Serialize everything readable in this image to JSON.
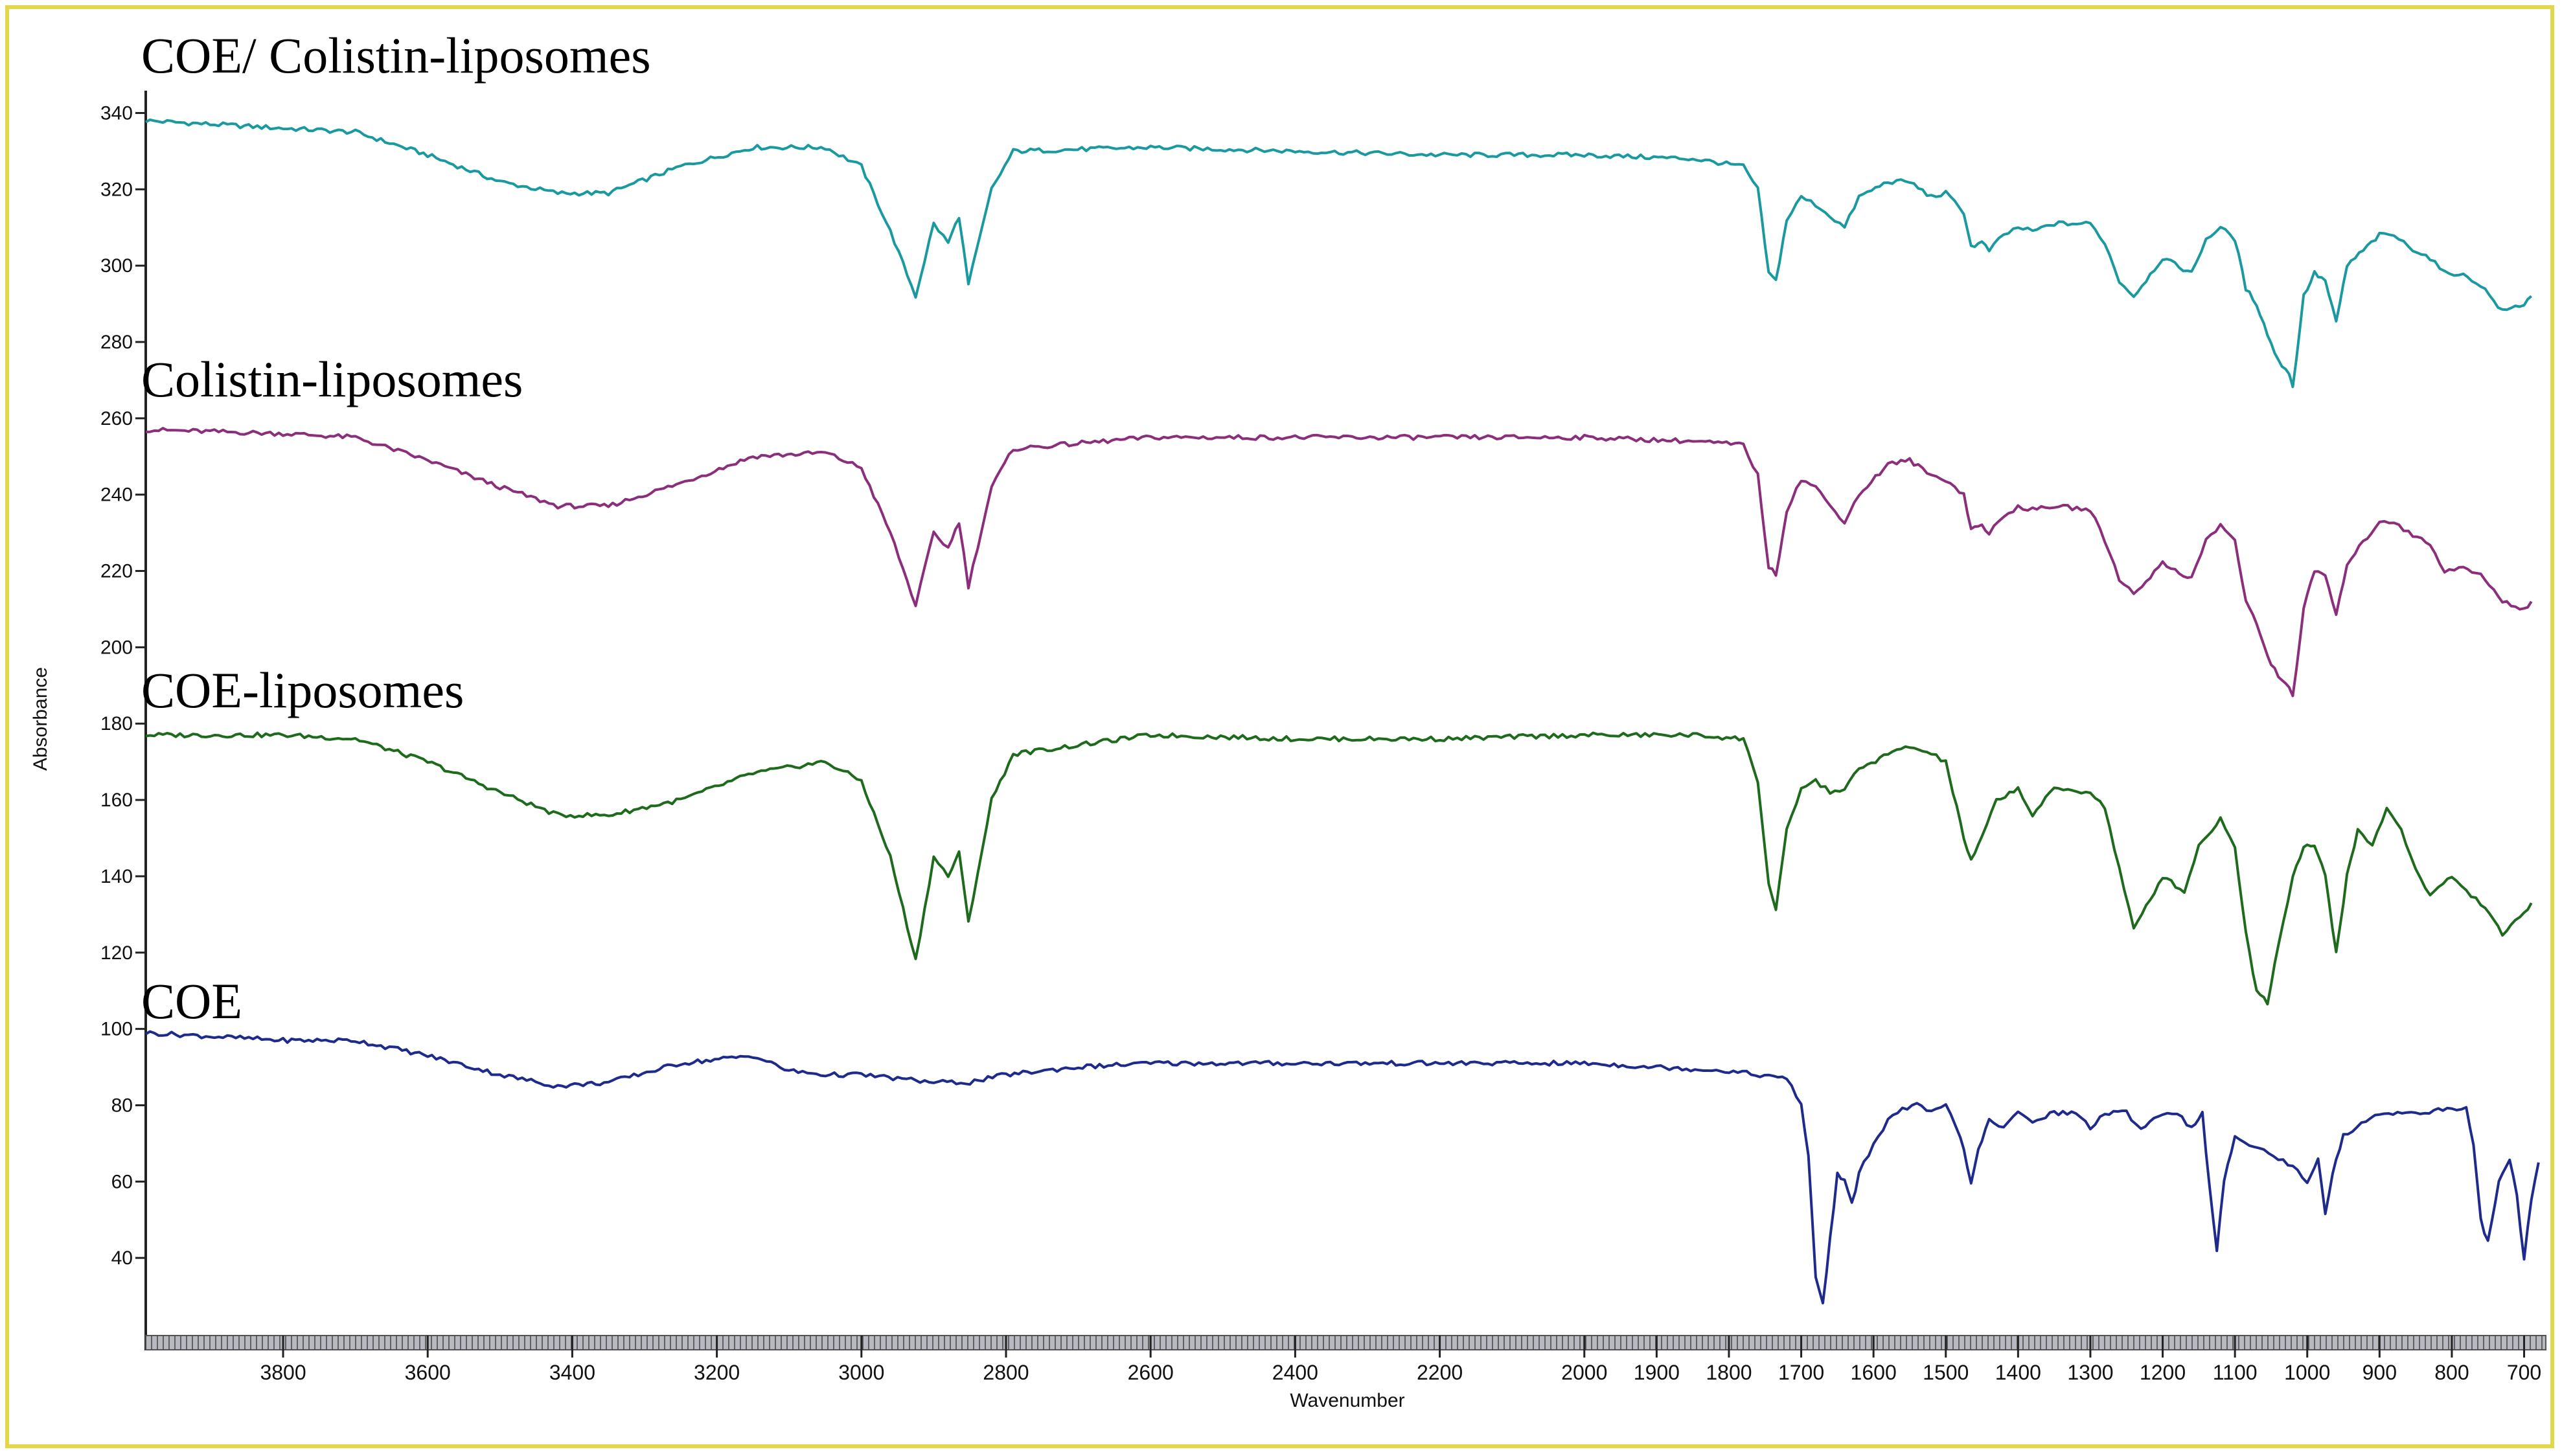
{
  "chart_data": {
    "type": "line",
    "xlabel": "Wavenumber",
    "ylabel": "Absorbance",
    "xlim": [
      3990,
      670
    ],
    "ylim": [
      20,
      345
    ],
    "x_ticks": [
      3800,
      3600,
      3400,
      3200,
      3000,
      2800,
      2600,
      2400,
      2200,
      2000,
      1900,
      1800,
      1700,
      1600,
      1500,
      1400,
      1300,
      1200,
      1100,
      1000,
      900,
      800,
      700
    ],
    "x_tick_labels": [
      "3800",
      "3600",
      "3400",
      "3200",
      "3000",
      "2800",
      "2600",
      "2400",
      "2200",
      "2000",
      "1900",
      "1800",
      "1700",
      "1600",
      "1500",
      "1400",
      "1300",
      "1200",
      "1100",
      "1000",
      "900",
      "800",
      "700"
    ],
    "y_ticks": [
      40,
      60,
      80,
      100,
      120,
      140,
      160,
      180,
      200,
      220,
      240,
      260,
      280,
      300,
      320,
      340
    ],
    "y_tick_labels": [
      "40",
      "60",
      "80",
      "100",
      "120",
      "140",
      "160",
      "180",
      "200",
      "220",
      "240",
      "260",
      "280",
      "300",
      "320",
      "340"
    ],
    "grid": false,
    "series": [
      {
        "name": "COE/ Colistin-liposomes",
        "color": "#1a9aa0",
        "points": [
          [
            3990,
            338
          ],
          [
            3800,
            336
          ],
          [
            3700,
            335
          ],
          [
            3600,
            329
          ],
          [
            3500,
            322
          ],
          [
            3420,
            319
          ],
          [
            3350,
            319
          ],
          [
            3250,
            326
          ],
          [
            3150,
            331
          ],
          [
            3050,
            331
          ],
          [
            3000,
            326
          ],
          [
            2960,
            309
          ],
          [
            2925,
            292
          ],
          [
            2900,
            311
          ],
          [
            2880,
            306
          ],
          [
            2865,
            313
          ],
          [
            2852,
            295
          ],
          [
            2820,
            320
          ],
          [
            2790,
            330
          ],
          [
            2600,
            331
          ],
          [
            2400,
            330
          ],
          [
            2200,
            329
          ],
          [
            2000,
            329
          ],
          [
            1850,
            328
          ],
          [
            1780,
            326
          ],
          [
            1760,
            320
          ],
          [
            1745,
            298
          ],
          [
            1735,
            296
          ],
          [
            1720,
            312
          ],
          [
            1700,
            318
          ],
          [
            1680,
            316
          ],
          [
            1660,
            313
          ],
          [
            1640,
            310
          ],
          [
            1620,
            318
          ],
          [
            1580,
            322
          ],
          [
            1550,
            322
          ],
          [
            1520,
            318
          ],
          [
            1500,
            319
          ],
          [
            1475,
            314
          ],
          [
            1465,
            305
          ],
          [
            1450,
            306
          ],
          [
            1440,
            304
          ],
          [
            1420,
            308
          ],
          [
            1400,
            310
          ],
          [
            1380,
            309
          ],
          [
            1350,
            311
          ],
          [
            1300,
            311
          ],
          [
            1280,
            306
          ],
          [
            1260,
            296
          ],
          [
            1240,
            292
          ],
          [
            1200,
            302
          ],
          [
            1160,
            298
          ],
          [
            1140,
            307
          ],
          [
            1120,
            310
          ],
          [
            1100,
            307
          ],
          [
            1085,
            294
          ],
          [
            1070,
            290
          ],
          [
            1055,
            282
          ],
          [
            1040,
            275
          ],
          [
            1025,
            272
          ],
          [
            1020,
            268
          ],
          [
            1005,
            292
          ],
          [
            990,
            298
          ],
          [
            975,
            296
          ],
          [
            960,
            285
          ],
          [
            945,
            300
          ],
          [
            900,
            308
          ],
          [
            880,
            308
          ],
          [
            860,
            305
          ],
          [
            830,
            302
          ],
          [
            810,
            298
          ],
          [
            790,
            298
          ],
          [
            760,
            295
          ],
          [
            730,
            288
          ],
          [
            700,
            290
          ],
          [
            690,
            292
          ]
        ]
      },
      {
        "name": "Colistin-liposomes",
        "color": "#8b2f7c",
        "points": [
          [
            3990,
            257
          ],
          [
            3800,
            256
          ],
          [
            3700,
            255
          ],
          [
            3600,
            249
          ],
          [
            3500,
            242
          ],
          [
            3420,
            237
          ],
          [
            3350,
            237
          ],
          [
            3250,
            243
          ],
          [
            3150,
            250
          ],
          [
            3050,
            251
          ],
          [
            3000,
            247
          ],
          [
            2960,
            230
          ],
          [
            2925,
            211
          ],
          [
            2900,
            230
          ],
          [
            2880,
            226
          ],
          [
            2865,
            233
          ],
          [
            2852,
            216
          ],
          [
            2820,
            242
          ],
          [
            2790,
            252
          ],
          [
            2600,
            255
          ],
          [
            2400,
            255
          ],
          [
            2200,
            255
          ],
          [
            2000,
            255
          ],
          [
            1850,
            254
          ],
          [
            1780,
            253
          ],
          [
            1760,
            245
          ],
          [
            1745,
            221
          ],
          [
            1735,
            219
          ],
          [
            1720,
            236
          ],
          [
            1700,
            244
          ],
          [
            1680,
            242
          ],
          [
            1660,
            237
          ],
          [
            1640,
            233
          ],
          [
            1620,
            240
          ],
          [
            1580,
            248
          ],
          [
            1550,
            249
          ],
          [
            1520,
            245
          ],
          [
            1500,
            244
          ],
          [
            1475,
            240
          ],
          [
            1465,
            231
          ],
          [
            1450,
            232
          ],
          [
            1440,
            230
          ],
          [
            1420,
            234
          ],
          [
            1400,
            237
          ],
          [
            1380,
            236
          ],
          [
            1350,
            237
          ],
          [
            1300,
            236
          ],
          [
            1280,
            228
          ],
          [
            1260,
            218
          ],
          [
            1240,
            214
          ],
          [
            1200,
            222
          ],
          [
            1160,
            218
          ],
          [
            1140,
            228
          ],
          [
            1120,
            232
          ],
          [
            1100,
            228
          ],
          [
            1085,
            212
          ],
          [
            1070,
            206
          ],
          [
            1055,
            198
          ],
          [
            1040,
            192
          ],
          [
            1025,
            190
          ],
          [
            1020,
            187
          ],
          [
            1005,
            210
          ],
          [
            990,
            220
          ],
          [
            975,
            219
          ],
          [
            960,
            208
          ],
          [
            945,
            222
          ],
          [
            900,
            233
          ],
          [
            880,
            233
          ],
          [
            860,
            230
          ],
          [
            830,
            227
          ],
          [
            810,
            220
          ],
          [
            790,
            221
          ],
          [
            760,
            219
          ],
          [
            730,
            212
          ],
          [
            700,
            210
          ],
          [
            690,
            212
          ]
        ]
      },
      {
        "name": "COE-liposomes",
        "color": "#1e6b1e",
        "points": [
          [
            3990,
            177
          ],
          [
            3800,
            177
          ],
          [
            3700,
            176
          ],
          [
            3600,
            170
          ],
          [
            3500,
            162
          ],
          [
            3420,
            156
          ],
          [
            3350,
            156
          ],
          [
            3250,
            160
          ],
          [
            3150,
            167
          ],
          [
            3050,
            170
          ],
          [
            3000,
            165
          ],
          [
            2960,
            145
          ],
          [
            2925,
            118
          ],
          [
            2900,
            145
          ],
          [
            2880,
            140
          ],
          [
            2865,
            146
          ],
          [
            2852,
            128
          ],
          [
            2820,
            160
          ],
          [
            2790,
            172
          ],
          [
            2600,
            177
          ],
          [
            2400,
            176
          ],
          [
            2200,
            176
          ],
          [
            2000,
            177
          ],
          [
            1850,
            177
          ],
          [
            1780,
            176
          ],
          [
            1760,
            165
          ],
          [
            1745,
            138
          ],
          [
            1735,
            131
          ],
          [
            1720,
            152
          ],
          [
            1700,
            163
          ],
          [
            1680,
            165
          ],
          [
            1660,
            162
          ],
          [
            1640,
            163
          ],
          [
            1620,
            168
          ],
          [
            1580,
            172
          ],
          [
            1550,
            174
          ],
          [
            1520,
            172
          ],
          [
            1500,
            170
          ],
          [
            1490,
            162
          ],
          [
            1475,
            150
          ],
          [
            1465,
            144
          ],
          [
            1450,
            150
          ],
          [
            1430,
            160
          ],
          [
            1400,
            163
          ],
          [
            1380,
            156
          ],
          [
            1350,
            163
          ],
          [
            1300,
            162
          ],
          [
            1280,
            158
          ],
          [
            1260,
            142
          ],
          [
            1240,
            126
          ],
          [
            1200,
            140
          ],
          [
            1170,
            136
          ],
          [
            1150,
            148
          ],
          [
            1120,
            155
          ],
          [
            1100,
            148
          ],
          [
            1085,
            125
          ],
          [
            1070,
            110
          ],
          [
            1055,
            107
          ],
          [
            1040,
            122
          ],
          [
            1020,
            140
          ],
          [
            1005,
            148
          ],
          [
            990,
            148
          ],
          [
            975,
            140
          ],
          [
            960,
            120
          ],
          [
            945,
            140
          ],
          [
            930,
            152
          ],
          [
            910,
            148
          ],
          [
            890,
            158
          ],
          [
            870,
            152
          ],
          [
            850,
            142
          ],
          [
            830,
            135
          ],
          [
            800,
            140
          ],
          [
            780,
            136
          ],
          [
            760,
            133
          ],
          [
            730,
            125
          ],
          [
            700,
            130
          ],
          [
            690,
            133
          ]
        ]
      },
      {
        "name": "COE",
        "color": "#1f2b8c",
        "points": [
          [
            3990,
            99
          ],
          [
            3800,
            97
          ],
          [
            3700,
            97
          ],
          [
            3600,
            93
          ],
          [
            3500,
            88
          ],
          [
            3420,
            85
          ],
          [
            3350,
            86
          ],
          [
            3250,
            91
          ],
          [
            3150,
            93
          ],
          [
            3100,
            89
          ],
          [
            3050,
            88
          ],
          [
            3000,
            88
          ],
          [
            2950,
            87
          ],
          [
            2900,
            86
          ],
          [
            2850,
            86
          ],
          [
            2800,
            88
          ],
          [
            2700,
            90
          ],
          [
            2600,
            91
          ],
          [
            2400,
            91
          ],
          [
            2200,
            91
          ],
          [
            2000,
            91
          ],
          [
            1900,
            90
          ],
          [
            1800,
            89
          ],
          [
            1720,
            87
          ],
          [
            1700,
            80
          ],
          [
            1690,
            67
          ],
          [
            1680,
            35
          ],
          [
            1670,
            28
          ],
          [
            1660,
            45
          ],
          [
            1650,
            62
          ],
          [
            1640,
            60
          ],
          [
            1630,
            54
          ],
          [
            1620,
            62
          ],
          [
            1600,
            70
          ],
          [
            1580,
            76
          ],
          [
            1560,
            79
          ],
          [
            1540,
            80
          ],
          [
            1520,
            78
          ],
          [
            1500,
            80
          ],
          [
            1480,
            72
          ],
          [
            1465,
            60
          ],
          [
            1455,
            68
          ],
          [
            1440,
            76
          ],
          [
            1420,
            74
          ],
          [
            1400,
            78
          ],
          [
            1380,
            76
          ],
          [
            1350,
            78
          ],
          [
            1320,
            78
          ],
          [
            1300,
            74
          ],
          [
            1280,
            78
          ],
          [
            1250,
            78
          ],
          [
            1230,
            74
          ],
          [
            1200,
            78
          ],
          [
            1180,
            78
          ],
          [
            1160,
            74
          ],
          [
            1145,
            78
          ],
          [
            1135,
            58
          ],
          [
            1125,
            42
          ],
          [
            1115,
            60
          ],
          [
            1100,
            72
          ],
          [
            1080,
            70
          ],
          [
            1060,
            68
          ],
          [
            1040,
            66
          ],
          [
            1020,
            64
          ],
          [
            1000,
            60
          ],
          [
            985,
            66
          ],
          [
            975,
            52
          ],
          [
            965,
            62
          ],
          [
            950,
            72
          ],
          [
            900,
            78
          ],
          [
            850,
            78
          ],
          [
            800,
            79
          ],
          [
            780,
            79
          ],
          [
            770,
            70
          ],
          [
            760,
            50
          ],
          [
            750,
            44
          ],
          [
            735,
            60
          ],
          [
            720,
            66
          ],
          [
            710,
            56
          ],
          [
            700,
            40
          ],
          [
            690,
            55
          ],
          [
            680,
            65
          ]
        ]
      }
    ]
  }
}
